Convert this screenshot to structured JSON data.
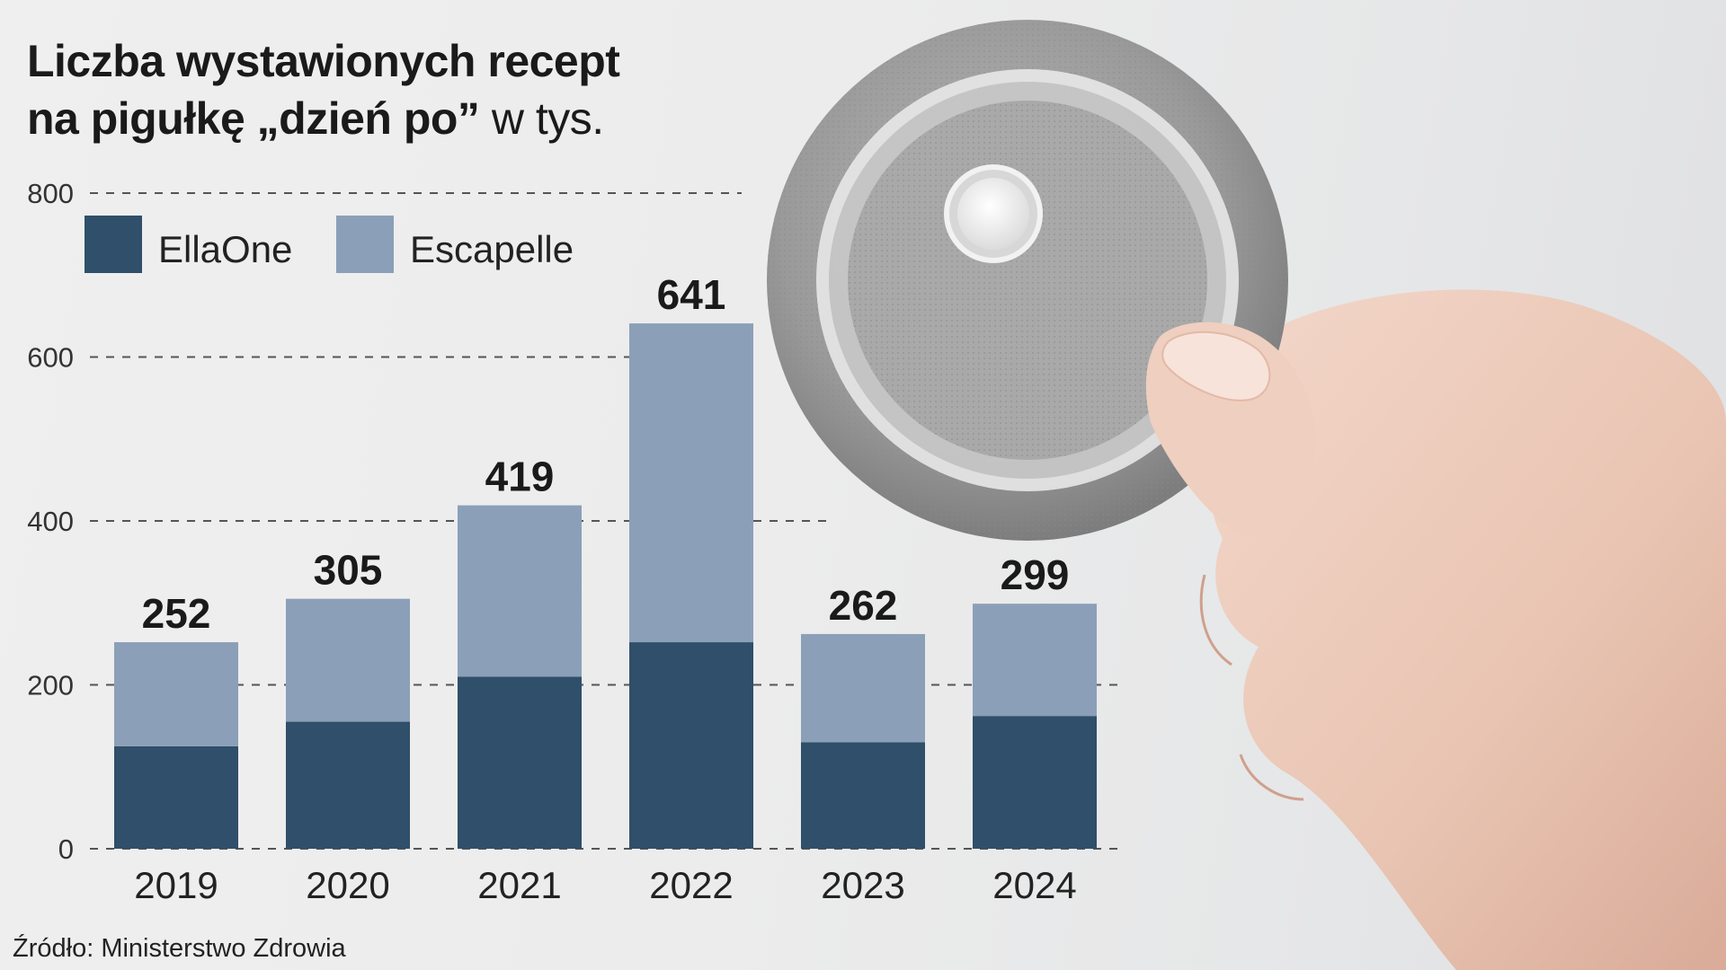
{
  "title": {
    "line1": "Liczba wystawionych recept",
    "line2_bold": "na pigułkę „dzień po”",
    "line2_unit": "w tys."
  },
  "source": "Źródło: Ministerstwo Zdrowia",
  "colors": {
    "ellaone": "#2f4f6a",
    "escapelle": "#8ba0b8",
    "text": "#1a1a1a",
    "gridline": "#555555"
  },
  "chart_data": {
    "type": "bar",
    "stacked": true,
    "categories": [
      "2019",
      "2020",
      "2021",
      "2022",
      "2023",
      "2024"
    ],
    "series": [
      {
        "name": "EllaOne",
        "values": [
          125,
          155,
          210,
          252,
          130,
          162
        ]
      },
      {
        "name": "Escapelle",
        "values": [
          127,
          150,
          209,
          389,
          132,
          137
        ]
      }
    ],
    "totals": [
      252,
      305,
      419,
      641,
      262,
      299
    ],
    "yticks": [
      0,
      200,
      400,
      600,
      800
    ],
    "ylim": [
      0,
      800
    ],
    "grid": true,
    "legend_position": "top-left"
  }
}
